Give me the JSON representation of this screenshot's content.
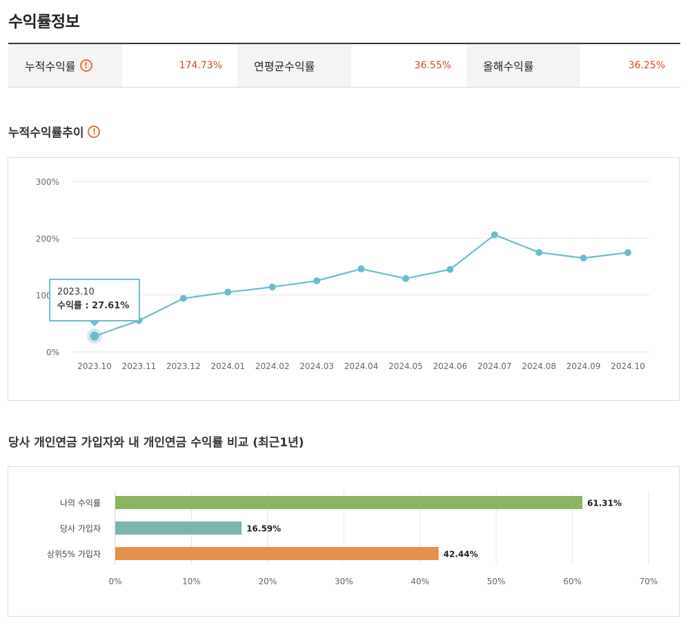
{
  "page_title": "수익률정보",
  "summary": [
    {
      "label": "누적수익률",
      "value": "174.73%",
      "warn": "!"
    },
    {
      "label": "연평균수익률",
      "value": "36.55%"
    },
    {
      "label": "올해수익률",
      "value": "36.25%"
    }
  ],
  "section1": {
    "title": "누적수익률추이",
    "warn": "!"
  },
  "section2": {
    "title": "당사 개인연금 가입자와 내 개인연금 수익률 비교 (최근1년)"
  },
  "tooltip": {
    "date": "2023.10",
    "text": "수익률 : 27.61%"
  },
  "colors": {
    "line": "#6bbccc",
    "bar1": "#8db560",
    "bar2": "#7bb6ab",
    "bar3": "#e6914a",
    "value_red": "#d04a1e",
    "warn": "#e8703a"
  },
  "chart_data": [
    {
      "type": "line",
      "title": "누적수익률추이",
      "x": [
        "2023.10",
        "2023.11",
        "2023.12",
        "2024.01",
        "2024.02",
        "2024.03",
        "2024.04",
        "2024.05",
        "2024.06",
        "2024.07",
        "2024.08",
        "2024.09",
        "2024.10"
      ],
      "series": [
        {
          "values": [
            27.61,
            55,
            94,
            105,
            114,
            125,
            146,
            129,
            145,
            206,
            175,
            165,
            174.73
          ]
        }
      ],
      "y_ticks": [
        "0%",
        "100%",
        "200%",
        "300%"
      ],
      "ylim": [
        0,
        300
      ],
      "grid": true
    },
    {
      "type": "bar",
      "orientation": "horizontal",
      "categories": [
        "나의 수익률",
        "당사 가입자",
        "상위5% 가입자"
      ],
      "values": [
        61.31,
        16.59,
        42.44
      ],
      "value_labels": [
        "61.31%",
        "16.59%",
        "42.44%"
      ],
      "x_ticks": [
        "0%",
        "10%",
        "20%",
        "30%",
        "40%",
        "50%",
        "60%",
        "70%"
      ],
      "xlim": [
        0,
        70
      ],
      "grid": true
    }
  ]
}
